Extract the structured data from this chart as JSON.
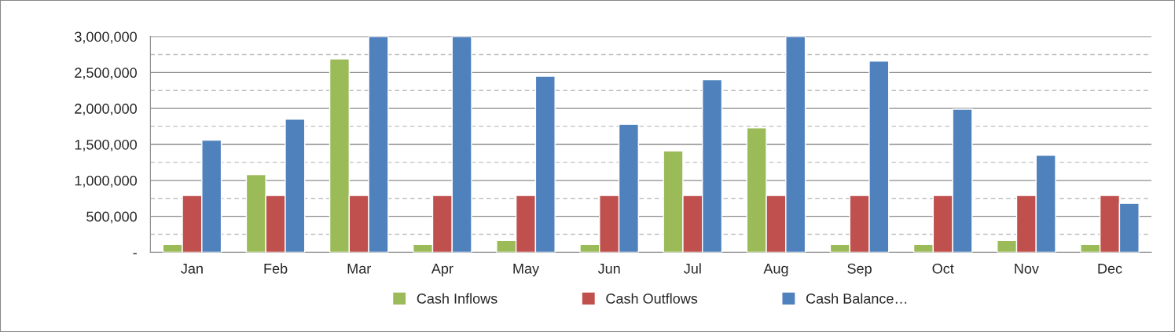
{
  "chart_data": {
    "type": "bar",
    "categories": [
      "Jan",
      "Feb",
      "Mar",
      "Apr",
      "May",
      "Jun",
      "Jul",
      "Aug",
      "Sep",
      "Oct",
      "Nov",
      "Dec"
    ],
    "series": [
      {
        "name": "Cash Inflows",
        "color": "#9bbb59",
        "values": [
          110000,
          1080000,
          2690000,
          110000,
          165000,
          110000,
          1410000,
          1730000,
          110000,
          110000,
          165000,
          110000
        ]
      },
      {
        "name": "Cash Outflows",
        "color": "#c0504d",
        "values": [
          790000,
          790000,
          790000,
          790000,
          790000,
          790000,
          790000,
          790000,
          790000,
          790000,
          790000,
          790000
        ]
      },
      {
        "name": "Cash Balance…",
        "color": "#4f81bd",
        "values": [
          1560000,
          1850000,
          3000000,
          3000000,
          2450000,
          1780000,
          2400000,
          3000000,
          2660000,
          1990000,
          1350000,
          680000
        ]
      }
    ],
    "ylim": [
      0,
      3000000
    ],
    "yticks": [
      {
        "value": 0,
        "label": "-"
      },
      {
        "value": 250000,
        "label": null
      },
      {
        "value": 500000,
        "label": "500,000"
      },
      {
        "value": 750000,
        "label": null
      },
      {
        "value": 1000000,
        "label": "1,000,000"
      },
      {
        "value": 1250000,
        "label": null
      },
      {
        "value": 1500000,
        "label": "1,500,000"
      },
      {
        "value": 1750000,
        "label": null
      },
      {
        "value": 2000000,
        "label": "2,000,000"
      },
      {
        "value": 2250000,
        "label": null
      },
      {
        "value": 2500000,
        "label": "2,500,000"
      },
      {
        "value": 2750000,
        "label": null
      },
      {
        "value": 3000000,
        "label": "3,000,000"
      }
    ],
    "grid": "y",
    "legend": "bottom"
  }
}
